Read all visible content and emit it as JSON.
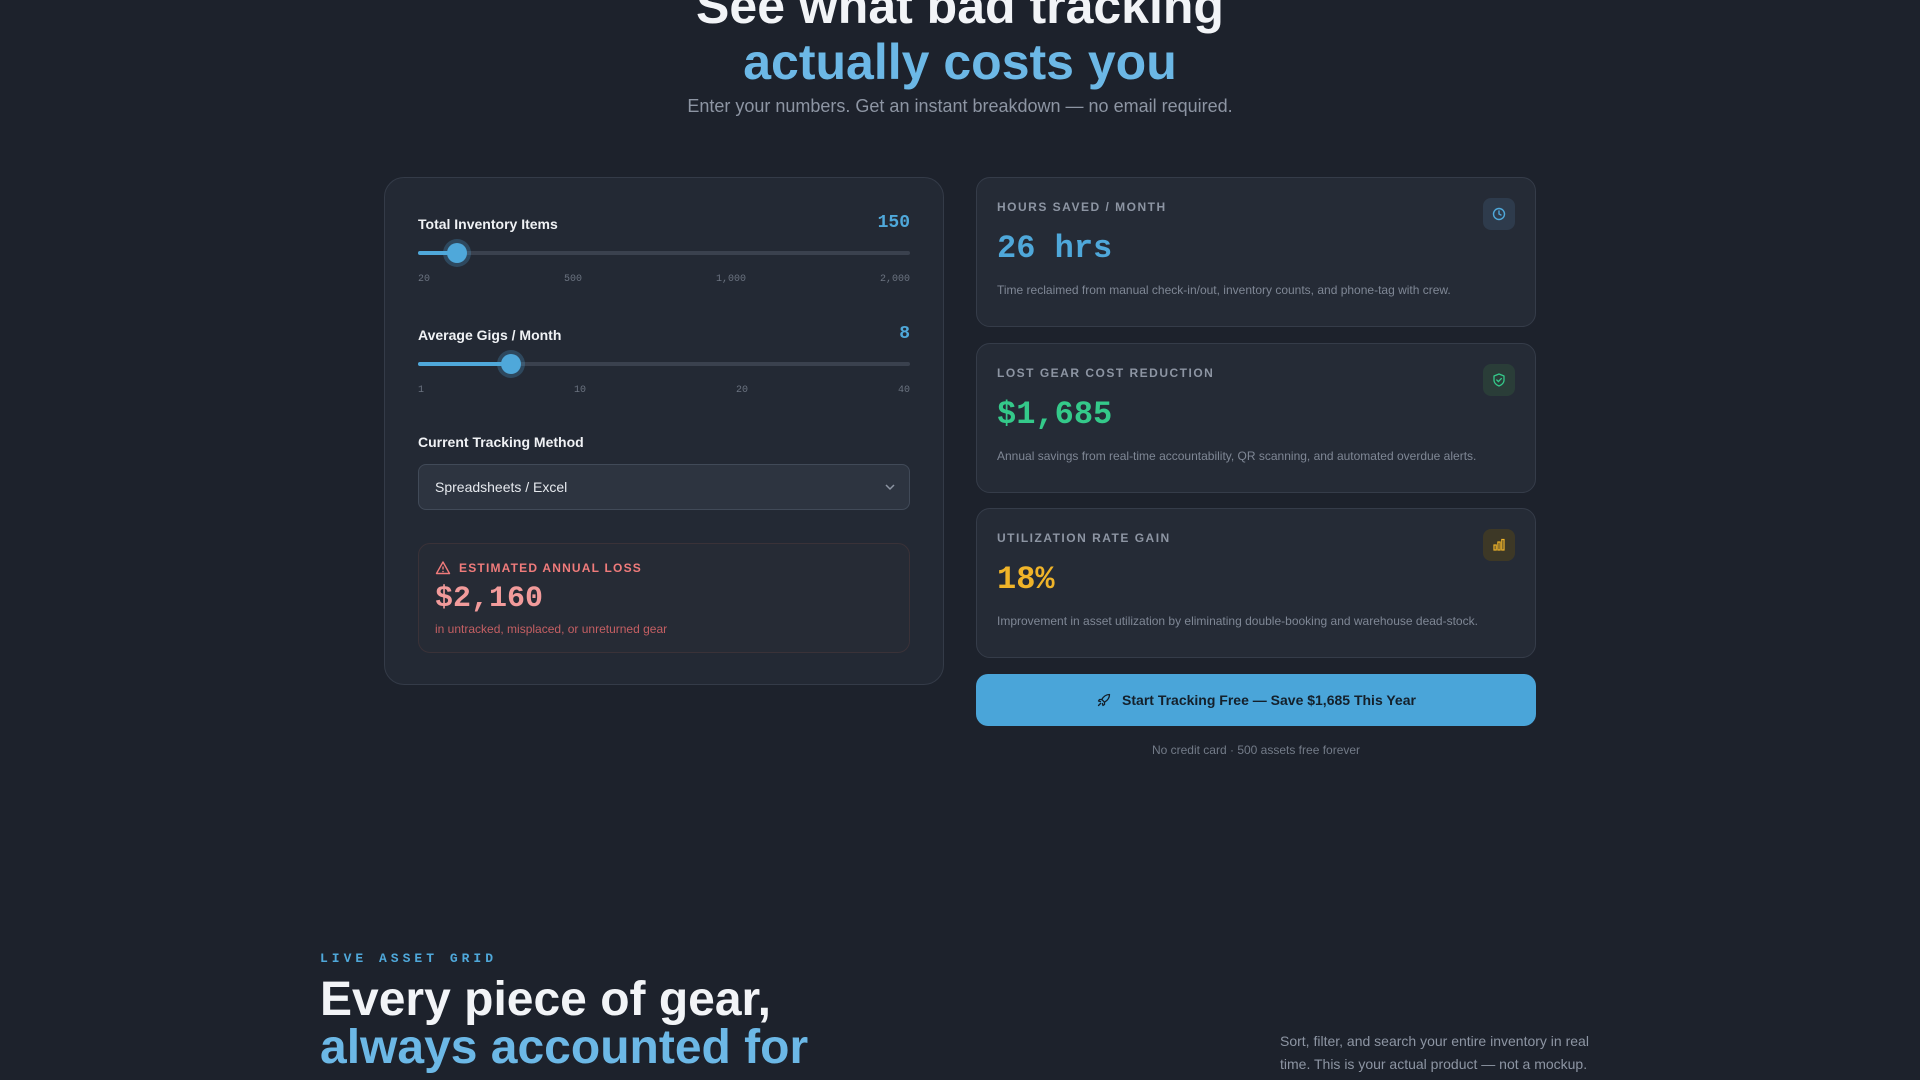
{
  "hero": {
    "title_line1": "See what bad tracking",
    "title_line2": "actually costs you",
    "subtitle": "Enter your numbers. Get an instant breakdown — no email required."
  },
  "calculator": {
    "inventory": {
      "label": "Total Inventory Items",
      "value": "150",
      "slider_fraction": 0.08,
      "ticks": [
        "20",
        "500",
        "1,000",
        "2,000"
      ]
    },
    "gigs": {
      "label": "Average Gigs / Month",
      "value": "8",
      "slider_fraction": 0.19,
      "ticks": [
        "1",
        "10",
        "20",
        "40"
      ]
    },
    "method": {
      "label": "Current Tracking Method",
      "selected": "Spreadsheets / Excel"
    },
    "loss": {
      "title": "ESTIMATED ANNUAL LOSS",
      "amount": "$2,160",
      "note": "in untracked, misplaced, or unreturned gear"
    }
  },
  "results": [
    {
      "label": "HOURS SAVED / MONTH",
      "value": "26 hrs",
      "desc": "Time reclaimed from manual check-in/out, inventory counts, and phone-tag with crew.",
      "color": "#4fa8da",
      "icon": "clock-icon"
    },
    {
      "label": "LOST GEAR COST REDUCTION",
      "value": "$1,685",
      "desc": "Annual savings from real-time accountability, QR scanning, and automated overdue alerts.",
      "color": "#34c98a",
      "icon": "shield-check-icon"
    },
    {
      "label": "UTILIZATION RATE GAIN",
      "value": "18%",
      "desc": "Improvement in asset utilization by eliminating double-booking and warehouse dead-stock.",
      "color": "#f0b429",
      "icon": "bar-chart-icon"
    }
  ],
  "cta": {
    "label": "Start Tracking Free — Save $1,685 This Year",
    "note": "No credit card · 500 assets free forever",
    "icon": "rocket-icon"
  },
  "section2": {
    "eyebrow": "LIVE ASSET GRID",
    "title_line1": "Every piece of gear,",
    "title_line2": "always accounted for",
    "desc": "Sort, filter, and search your entire inventory in real time. This is your actual product — not a mockup."
  }
}
